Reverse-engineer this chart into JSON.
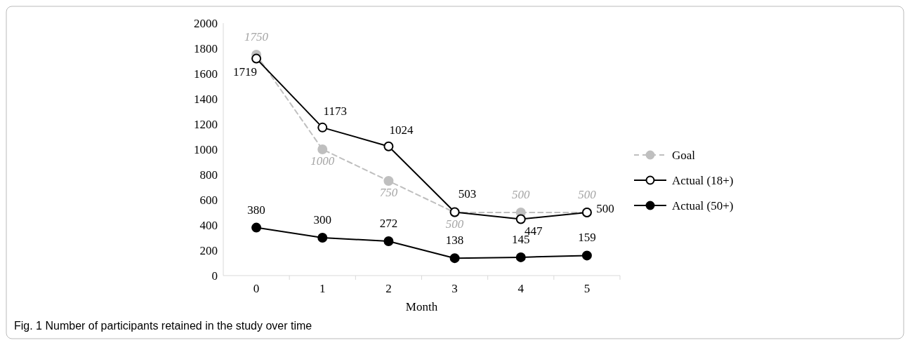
{
  "chart_data": {
    "type": "line",
    "xlabel": "Month",
    "categories": [
      "0",
      "1",
      "2",
      "3",
      "4",
      "5"
    ],
    "ylim": [
      0,
      2000
    ],
    "yticks": [
      0,
      200,
      400,
      600,
      800,
      1000,
      1200,
      1400,
      1600,
      1800,
      2000
    ],
    "grid": false,
    "legend": "right",
    "data_labels": true,
    "series": [
      {
        "name": "Goal",
        "color": "#bfbfbf",
        "line_style": "dashed",
        "marker": "circle",
        "values": [
          1750,
          1000,
          750,
          500,
          500,
          500
        ]
      },
      {
        "name": "Actual (18+)",
        "color": "#000000",
        "line_style": "solid",
        "marker": "circle-open",
        "values": [
          1719,
          1173,
          1024,
          503,
          447,
          500
        ]
      },
      {
        "name": "Actual (50+)",
        "color": "#000000",
        "line_style": "solid",
        "marker": "circle",
        "values": [
          380,
          300,
          272,
          138,
          145,
          159
        ]
      }
    ],
    "annotations": [
      "Fig. 1  Number of participants retained in the study over time"
    ]
  }
}
